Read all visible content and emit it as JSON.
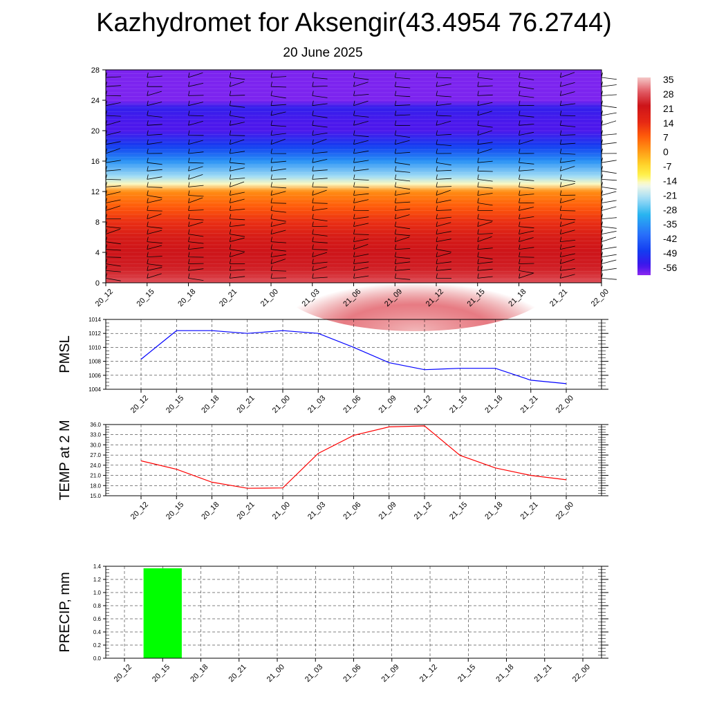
{
  "header": {
    "title": "Kazhydromet for Aksengir(43.4954 76.2744)",
    "subtitle": "20 June 2025"
  },
  "colors": {
    "pmsl_line": "#0000ff",
    "temp_line": "#ff0000",
    "precip_bar": "#00ff00",
    "wind_barbs": "#000000"
  },
  "chart_data": [
    {
      "type": "heatmap",
      "title": "",
      "x": [
        "20_12",
        "20_15",
        "20_18",
        "20_21",
        "21_00",
        "21_03",
        "21_06",
        "21_09",
        "21_12",
        "21_15",
        "21_18",
        "21_21",
        "22_00"
      ],
      "yticks": [
        0,
        4,
        8,
        12,
        16,
        20,
        24,
        28
      ],
      "ylim": [
        0,
        28
      ],
      "colorbar_labels": [
        35,
        28,
        21,
        14,
        7,
        0,
        -7,
        -14,
        -21,
        -28,
        -35,
        -42,
        -49,
        -56
      ],
      "colorbar_range": [
        -60,
        38
      ],
      "levels_temperature": [
        {
          "y": 0,
          "value": 30
        },
        {
          "y": 1,
          "value": 27
        },
        {
          "y": 2,
          "value": 25
        },
        {
          "y": 4,
          "value": 24
        },
        {
          "y": 6,
          "value": 21
        },
        {
          "y": 8,
          "value": 15
        },
        {
          "y": 10,
          "value": 9
        },
        {
          "y": 12,
          "value": 3
        },
        {
          "y": 13,
          "value": -14
        },
        {
          "y": 14,
          "value": -22
        },
        {
          "y": 16,
          "value": -35
        },
        {
          "y": 18,
          "value": -48
        },
        {
          "y": 20,
          "value": -56
        },
        {
          "y": 21,
          "value": -56
        },
        {
          "y": 23,
          "value": -53
        },
        {
          "y": 24,
          "value": -59
        },
        {
          "y": 28,
          "value": -59
        }
      ],
      "surface_max_temperature": 37,
      "grid": false,
      "legend": "right"
    },
    {
      "type": "line",
      "title": "",
      "ylabel": "PMSL",
      "x": [
        "20_12",
        "20_15",
        "20_18",
        "20_21",
        "21_00",
        "21_03",
        "21_06",
        "21_09",
        "21_12",
        "21_15",
        "21_18",
        "21_21",
        "22_00"
      ],
      "series": [
        {
          "values": [
            1008.3,
            1012.4,
            1012.4,
            1012.0,
            1012.4,
            1012.0,
            1010.0,
            1007.8,
            1006.8,
            1007.0,
            1007.0,
            1005.3,
            1004.8
          ]
        }
      ],
      "yticks": [
        "1004",
        "1006",
        "1008",
        "1010",
        "1012",
        "1014"
      ],
      "ylim": [
        1004,
        1014
      ],
      "grid": true
    },
    {
      "type": "line",
      "title": "",
      "ylabel": "TEMP at 2 M",
      "x": [
        "20_12",
        "20_15",
        "20_18",
        "20_21",
        "21_00",
        "21_03",
        "21_06",
        "21_09",
        "21_12",
        "21_15",
        "21_18",
        "21_21",
        "22_00"
      ],
      "series": [
        {
          "values": [
            25.3,
            22.8,
            19.0,
            17.2,
            17.3,
            27.5,
            32.8,
            35.3,
            35.6,
            26.9,
            23.2,
            21.0,
            19.7
          ]
        }
      ],
      "yticks": [
        "15.0",
        "18.0",
        "21.0",
        "24.0",
        "27.0",
        "30.0",
        "33.0",
        "36.0"
      ],
      "ylim": [
        15,
        36
      ],
      "grid": true
    },
    {
      "type": "bar",
      "title": "",
      "ylabel": "PRECIP, mm",
      "x": [
        "20_12",
        "20_15",
        "20_18",
        "20_21",
        "21_00",
        "21_03",
        "21_06",
        "21_09",
        "21_12",
        "21_15",
        "21_18",
        "21_21",
        "22_00"
      ],
      "series": [
        {
          "values": [
            0,
            1.37,
            0,
            0,
            0,
            0,
            0,
            0,
            0,
            0,
            0,
            0,
            0
          ]
        }
      ],
      "yticks": [
        "0.0",
        "0.2",
        "0.4",
        "0.6",
        "0.8",
        "1.0",
        "1.2",
        "1.4"
      ],
      "ylim": [
        0,
        1.4
      ],
      "grid": true
    }
  ]
}
